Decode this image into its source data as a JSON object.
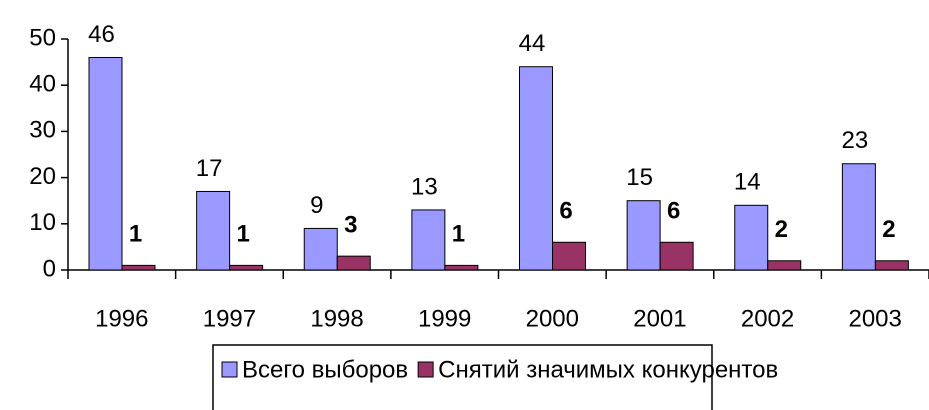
{
  "chart_data": {
    "type": "bar",
    "categories": [
      "1996",
      "1997",
      "1998",
      "1999",
      "2000",
      "2001",
      "2002",
      "2003"
    ],
    "series": [
      {
        "name": "Всего выборов",
        "color": "#9999ff",
        "values": [
          46,
          17,
          9,
          13,
          44,
          15,
          14,
          23
        ]
      },
      {
        "name": "Снятий значимых конкурентов",
        "color": "#993366",
        "values": [
          1,
          1,
          3,
          1,
          6,
          6,
          2,
          2
        ]
      }
    ],
    "ylim": [
      0,
      50
    ],
    "yticks": [
      0,
      10,
      20,
      30,
      40,
      50
    ],
    "grid": false,
    "legend": "bottom"
  }
}
